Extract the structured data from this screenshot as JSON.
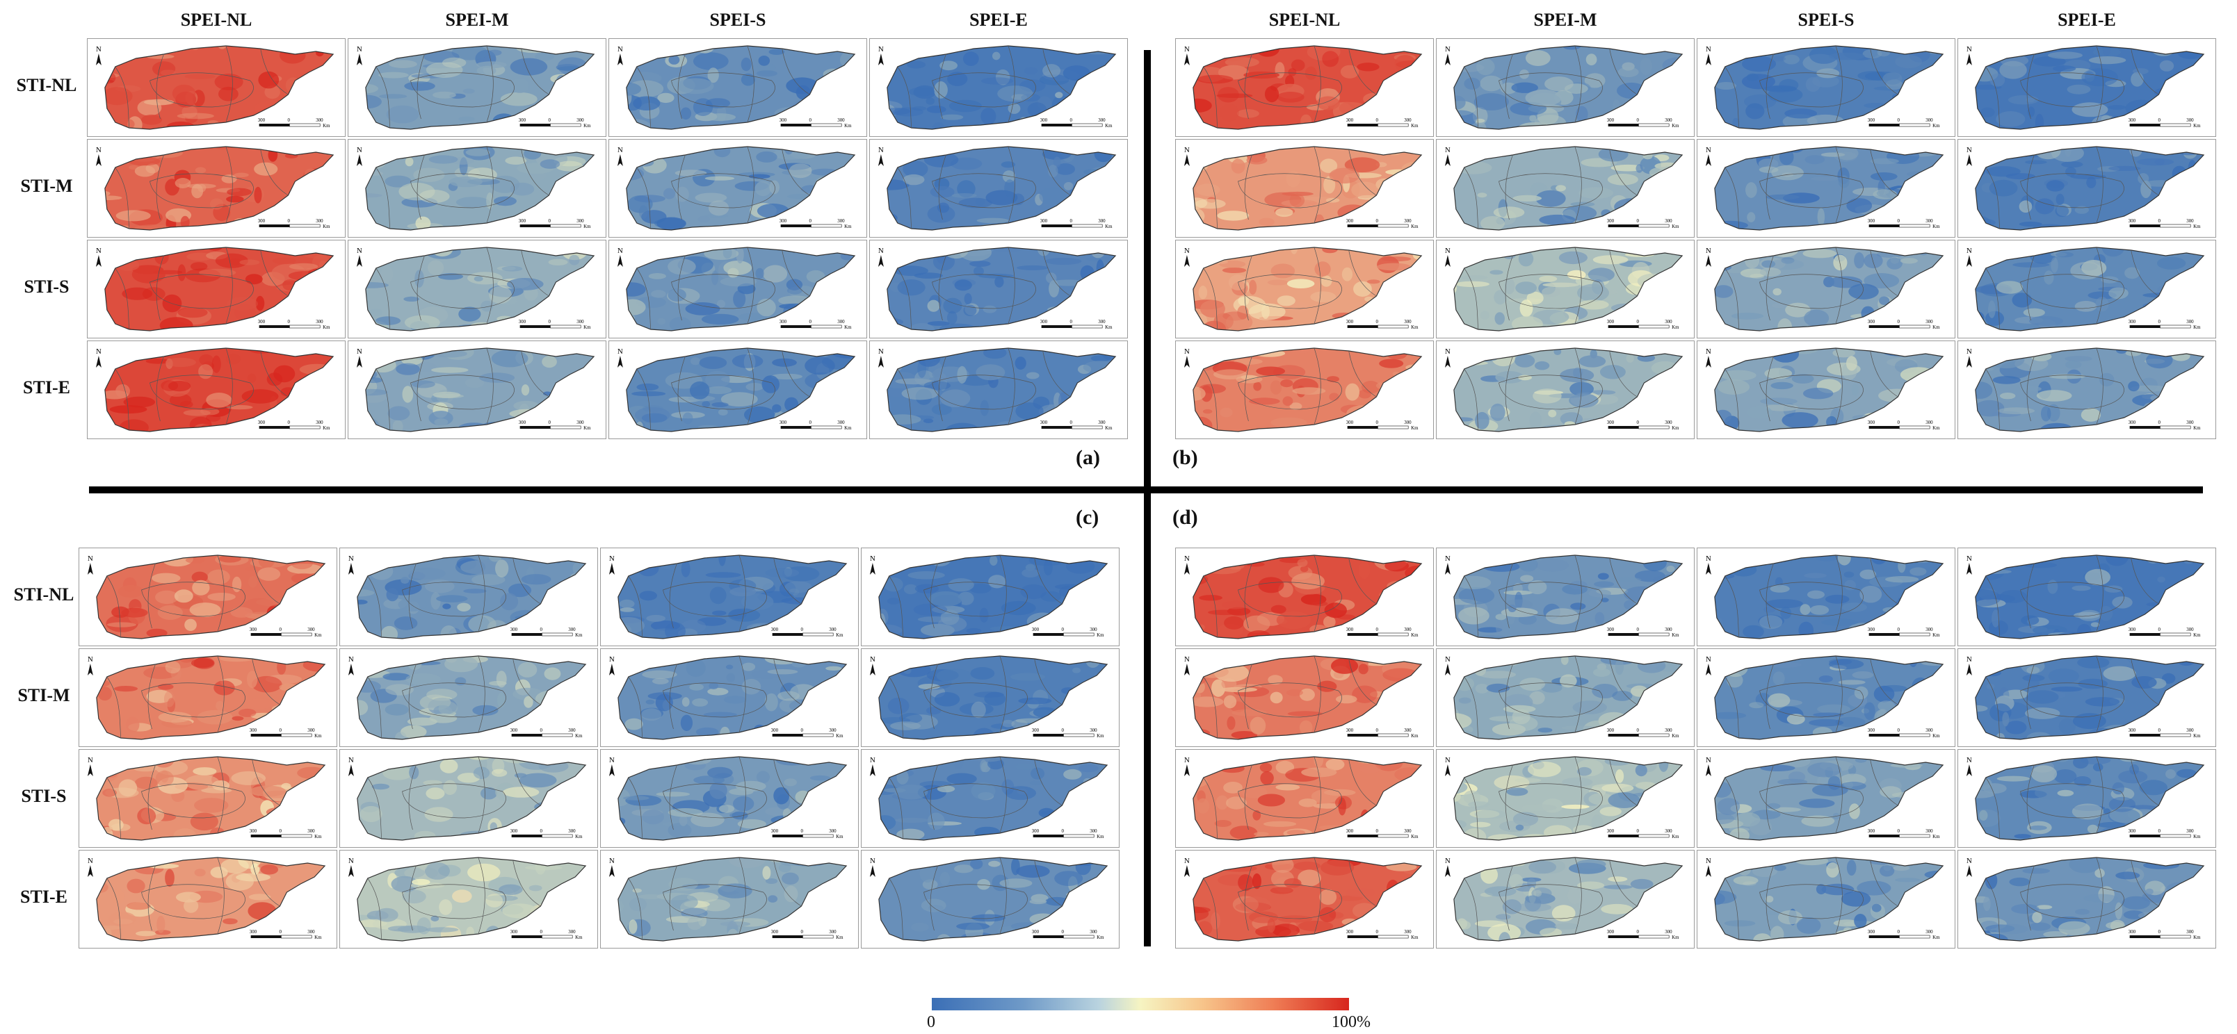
{
  "colors": {
    "low": "#3b6fb6",
    "mid": "#f6f4c2",
    "high": "#d7261e"
  },
  "columns": [
    "SPEI-NL",
    "SPEI-M",
    "SPEI-S",
    "SPEI-E"
  ],
  "rows": [
    "STI-NL",
    "STI-M",
    "STI-S",
    "STI-E"
  ],
  "map_annotations": {
    "north_symbol": "N",
    "scale_left": "300",
    "scale_zero": "0",
    "scale_right": "300",
    "scale_unit": "Km"
  },
  "panels": [
    {
      "id": "a",
      "label": "(a)",
      "cells": [
        [
          0.88,
          0.18,
          0.12,
          0.04
        ],
        [
          0.85,
          0.22,
          0.16,
          0.08
        ],
        [
          0.9,
          0.24,
          0.14,
          0.08
        ],
        [
          0.92,
          0.2,
          0.1,
          0.07
        ]
      ]
    },
    {
      "id": "b",
      "label": "(b)",
      "cells": [
        [
          0.9,
          0.14,
          0.06,
          0.03
        ],
        [
          0.72,
          0.24,
          0.12,
          0.06
        ],
        [
          0.7,
          0.3,
          0.2,
          0.1
        ],
        [
          0.78,
          0.26,
          0.2,
          0.16
        ]
      ]
    },
    {
      "id": "c",
      "label": "(c)",
      "cells": [
        [
          0.82,
          0.14,
          0.06,
          0.03
        ],
        [
          0.78,
          0.2,
          0.12,
          0.06
        ],
        [
          0.74,
          0.28,
          0.16,
          0.09
        ],
        [
          0.72,
          0.34,
          0.22,
          0.12
        ]
      ]
    },
    {
      "id": "d",
      "label": "(d)",
      "cells": [
        [
          0.9,
          0.14,
          0.06,
          0.03
        ],
        [
          0.8,
          0.22,
          0.1,
          0.06
        ],
        [
          0.78,
          0.3,
          0.18,
          0.1
        ],
        [
          0.86,
          0.28,
          0.18,
          0.14
        ]
      ]
    }
  ],
  "legend": {
    "min_label": "0",
    "max_label": "100%"
  }
}
